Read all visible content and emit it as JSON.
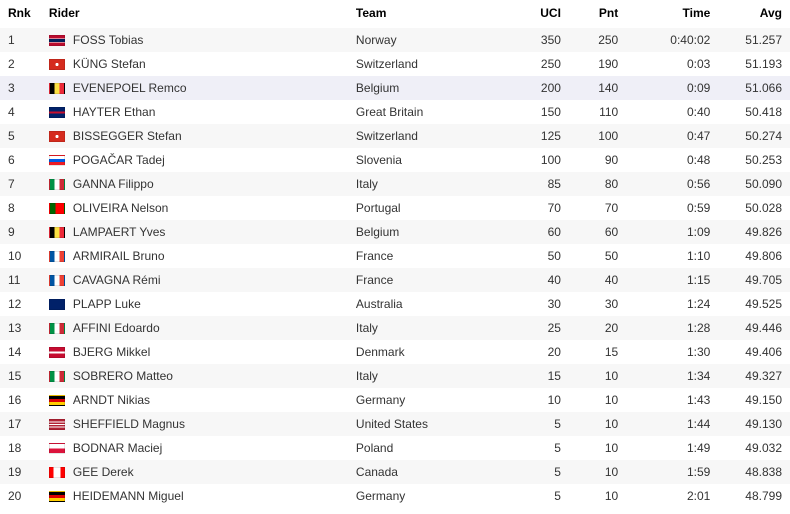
{
  "columns": {
    "rnk": "Rnk",
    "rider": "Rider",
    "team": "Team",
    "uci": "UCI",
    "pnt": "Pnt",
    "time": "Time",
    "avg": "Avg"
  },
  "flags": {
    "Norway": "linear-gradient(to bottom,#ba0c2f 0 30%,#fff 30% 35%,#00205b 35% 65%,#fff 65% 70%,#ba0c2f 70% 100%)",
    "Switzerland": "radial-gradient(circle at center,#fff 0 20%,#d52b1e 20% 100%)",
    "Belgium": "linear-gradient(to right,#000 0 33.3%,#fae042 33.3% 66.6%,#ed2939 66.6% 100%)",
    "Great Britain": "linear-gradient(to bottom,#012169 0 40%,#c8102e 40% 60%,#012169 60% 100%)",
    "Slovenia": "linear-gradient(to bottom,#fff 0 33.3%,#005ce5 33.3% 66.6%,#ed1c24 66.6% 100%)",
    "Italy": "linear-gradient(to right,#009246 0 33.3%,#fff 33.3% 66.6%,#ce2b37 66.6% 100%)",
    "Portugal": "linear-gradient(to right,#006600 0 40%,#ff0000 40% 100%)",
    "France": "linear-gradient(to right,#0055a4 0 33.3%,#fff 33.3% 66.6%,#ef4135 66.6% 100%)",
    "Australia": "linear-gradient(to bottom,#012169 0 50%,#012169 50% 100%)",
    "Denmark": "linear-gradient(to bottom,#c60c30 0 40%,#fff 40% 60%,#c60c30 60% 100%)",
    "Germany": "linear-gradient(to bottom,#000 0 33.3%,#dd0000 33.3% 66.6%,#ffce00 66.6% 100%)",
    "United States": "linear-gradient(to bottom,#b22234 0 14%,#fff 14% 28%,#b22234 28% 42%,#fff 42% 57%,#b22234 57% 71%,#fff 71% 85%,#b22234 85% 100%)",
    "Poland": "linear-gradient(to bottom,#fff 0 50%,#dc143c 50% 100%)",
    "Canada": "linear-gradient(to right,#ff0000 0 25%,#fff 25% 75%,#ff0000 75% 100%)"
  },
  "rows": [
    {
      "rnk": "1",
      "rider": "FOSS Tobias",
      "team": "Norway",
      "uci": "350",
      "pnt": "250",
      "time": "0:40:02",
      "avg": "51.257",
      "highlight": false
    },
    {
      "rnk": "2",
      "rider": "KÜNG Stefan",
      "team": "Switzerland",
      "uci": "250",
      "pnt": "190",
      "time": "0:03",
      "avg": "51.193",
      "highlight": false
    },
    {
      "rnk": "3",
      "rider": "EVENEPOEL Remco",
      "team": "Belgium",
      "uci": "200",
      "pnt": "140",
      "time": "0:09",
      "avg": "51.066",
      "highlight": true
    },
    {
      "rnk": "4",
      "rider": "HAYTER Ethan",
      "team": "Great Britain",
      "uci": "150",
      "pnt": "110",
      "time": "0:40",
      "avg": "50.418",
      "highlight": false
    },
    {
      "rnk": "5",
      "rider": "BISSEGGER Stefan",
      "team": "Switzerland",
      "uci": "125",
      "pnt": "100",
      "time": "0:47",
      "avg": "50.274",
      "highlight": false
    },
    {
      "rnk": "6",
      "rider": "POGAČAR Tadej",
      "team": "Slovenia",
      "uci": "100",
      "pnt": "90",
      "time": "0:48",
      "avg": "50.253",
      "highlight": false
    },
    {
      "rnk": "7",
      "rider": "GANNA Filippo",
      "team": "Italy",
      "uci": "85",
      "pnt": "80",
      "time": "0:56",
      "avg": "50.090",
      "highlight": false
    },
    {
      "rnk": "8",
      "rider": "OLIVEIRA Nelson",
      "team": "Portugal",
      "uci": "70",
      "pnt": "70",
      "time": "0:59",
      "avg": "50.028",
      "highlight": false
    },
    {
      "rnk": "9",
      "rider": "LAMPAERT Yves",
      "team": "Belgium",
      "uci": "60",
      "pnt": "60",
      "time": "1:09",
      "avg": "49.826",
      "highlight": false
    },
    {
      "rnk": "10",
      "rider": "ARMIRAIL Bruno",
      "team": "France",
      "uci": "50",
      "pnt": "50",
      "time": "1:10",
      "avg": "49.806",
      "highlight": false
    },
    {
      "rnk": "11",
      "rider": "CAVAGNA Rémi",
      "team": "France",
      "uci": "40",
      "pnt": "40",
      "time": "1:15",
      "avg": "49.705",
      "highlight": false
    },
    {
      "rnk": "12",
      "rider": "PLAPP Luke",
      "team": "Australia",
      "uci": "30",
      "pnt": "30",
      "time": "1:24",
      "avg": "49.525",
      "highlight": false
    },
    {
      "rnk": "13",
      "rider": "AFFINI Edoardo",
      "team": "Italy",
      "uci": "25",
      "pnt": "20",
      "time": "1:28",
      "avg": "49.446",
      "highlight": false
    },
    {
      "rnk": "14",
      "rider": "BJERG Mikkel",
      "team": "Denmark",
      "uci": "20",
      "pnt": "15",
      "time": "1:30",
      "avg": "49.406",
      "highlight": false
    },
    {
      "rnk": "15",
      "rider": "SOBRERO Matteo",
      "team": "Italy",
      "uci": "15",
      "pnt": "10",
      "time": "1:34",
      "avg": "49.327",
      "highlight": false
    },
    {
      "rnk": "16",
      "rider": "ARNDT Nikias",
      "team": "Germany",
      "uci": "10",
      "pnt": "10",
      "time": "1:43",
      "avg": "49.150",
      "highlight": false
    },
    {
      "rnk": "17",
      "rider": "SHEFFIELD Magnus",
      "team": "United States",
      "uci": "5",
      "pnt": "10",
      "time": "1:44",
      "avg": "49.130",
      "highlight": false
    },
    {
      "rnk": "18",
      "rider": "BODNAR Maciej",
      "team": "Poland",
      "uci": "5",
      "pnt": "10",
      "time": "1:49",
      "avg": "49.032",
      "highlight": false
    },
    {
      "rnk": "19",
      "rider": "GEE Derek",
      "team": "Canada",
      "uci": "5",
      "pnt": "10",
      "time": "1:59",
      "avg": "48.838",
      "highlight": false
    },
    {
      "rnk": "20",
      "rider": "HEIDEMANN Miguel",
      "team": "Germany",
      "uci": "5",
      "pnt": "10",
      "time": "2:01",
      "avg": "48.799",
      "highlight": false
    }
  ]
}
